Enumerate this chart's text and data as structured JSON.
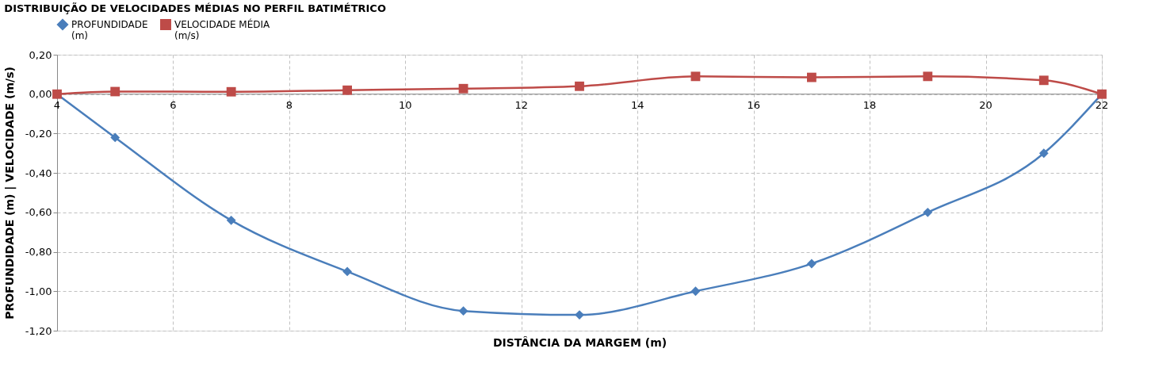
{
  "chart_data": {
    "type": "line",
    "title": "DISTRIBUIÇÃO DE VELOCIDADES MÉDIAS NO PERFIL BATIMÉTRICO",
    "xlabel": "DISTÂNCIA DA MARGEM (m)",
    "ylabel": "PROFUNDIDADE (m)  |   VELOCIDADE (m/s)",
    "x": [
      4,
      5,
      7,
      9,
      11,
      13,
      15,
      17,
      19,
      21,
      22
    ],
    "series": [
      {
        "name": "PROFUNDIDADE\n(m)",
        "color": "#4a7ebb",
        "marker": "diamond",
        "values": [
          0,
          -0.22,
          -0.64,
          -0.9,
          -1.1,
          -1.12,
          -1.0,
          -0.86,
          -0.6,
          -0.3,
          0
        ]
      },
      {
        "name": "VELOCIDADE MÉDIA\n(m/s)",
        "color": "#be4b48",
        "marker": "square",
        "values": [
          0,
          0.013,
          0.012,
          0.02,
          0.028,
          0.04,
          0.09,
          0.085,
          0.09,
          0.07,
          0
        ]
      }
    ],
    "xlim": [
      4,
      22
    ],
    "xticks": [
      4,
      6,
      8,
      10,
      12,
      14,
      16,
      18,
      20,
      22
    ],
    "ylim": [
      -1.2,
      0.2
    ],
    "yticks": [
      {
        "value": -1.2,
        "label": "-1,20"
      },
      {
        "value": -1.0,
        "label": "-1,00"
      },
      {
        "value": -0.8,
        "label": "-0,80"
      },
      {
        "value": -0.6,
        "label": "-0,60"
      },
      {
        "value": -0.4,
        "label": "-0,40"
      },
      {
        "value": -0.2,
        "label": "-0,20"
      },
      {
        "value": 0,
        "label": "0,00"
      },
      {
        "value": 0.2,
        "label": "0,20"
      }
    ],
    "grid": true,
    "legend": "top",
    "line_style": "solid"
  }
}
